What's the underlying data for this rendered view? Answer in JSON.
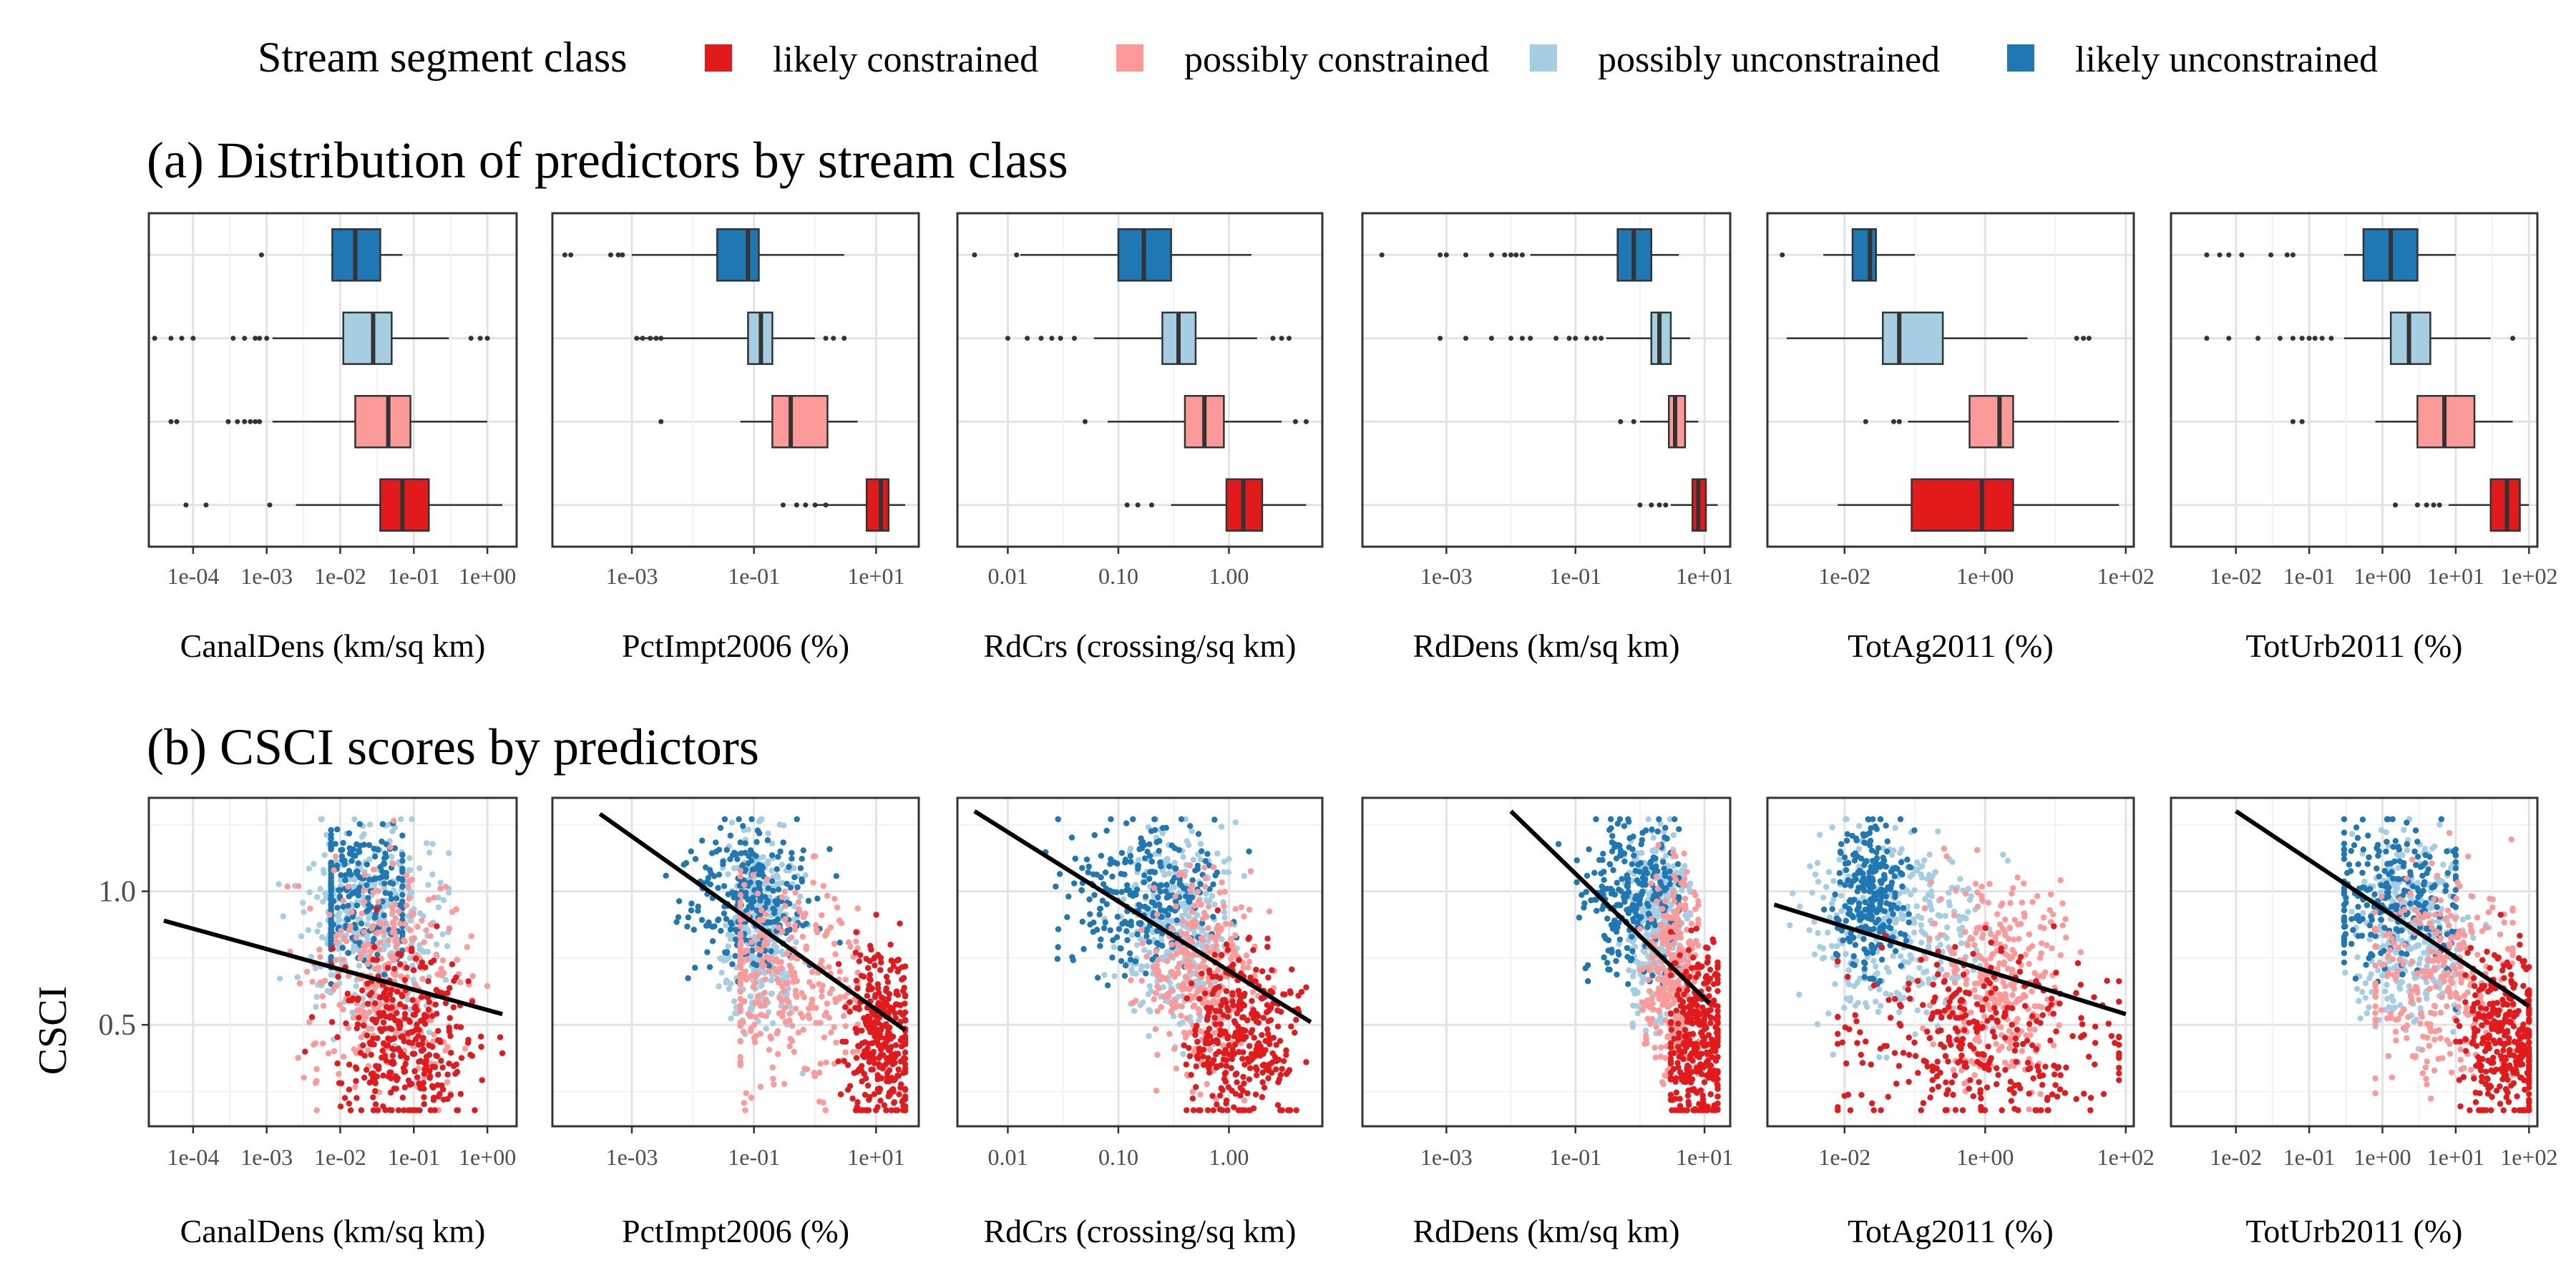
{
  "legend": {
    "title": "Stream segment class",
    "items": [
      {
        "label": "likely constrained",
        "color": "#e31a1c"
      },
      {
        "label": "possibly constrained",
        "color": "#fb9a99"
      },
      {
        "label": "possibly unconstrained",
        "color": "#a6cee3"
      },
      {
        "label": "likely unconstrained",
        "color": "#1f78b4"
      }
    ]
  },
  "panels": {
    "a_title": "(a) Distribution of predictors by stream class",
    "b_title": "(b) CSCI scores by predictors",
    "b_ylabel": "CSCI"
  },
  "chart_data": [
    {
      "type": "box",
      "title": "(a) Distribution of predictors by stream class",
      "log_x": true,
      "classes": [
        "likely unconstrained",
        "possibly unconstrained",
        "possibly constrained",
        "likely constrained"
      ],
      "facets": [
        {
          "xlabel": "CanalDens (km/sq km)",
          "xlim": [
            2.5e-05,
            2.5
          ],
          "ticks": [
            {
              "v": 0.0001,
              "label": "1e-04"
            },
            {
              "v": 0.001,
              "label": "1e-03"
            },
            {
              "v": 0.01,
              "label": "1e-02"
            },
            {
              "v": 0.1,
              "label": "1e-01"
            },
            {
              "v": 1,
              "label": "1e+00"
            }
          ],
          "boxes": [
            {
              "class": "likely unconstrained",
              "whisker_lo": 0.0075,
              "q1": 0.0078,
              "median": 0.016,
              "q3": 0.035,
              "whisker_hi": 0.07,
              "outliers": [
                0.00085
              ]
            },
            {
              "class": "possibly unconstrained",
              "whisker_lo": 0.0012,
              "q1": 0.011,
              "median": 0.028,
              "q3": 0.05,
              "whisker_hi": 0.3,
              "outliers": [
                3e-05,
                5e-05,
                7e-05,
                0.0001,
                0.00035,
                0.0005,
                0.0007,
                0.0008,
                0.001,
                0.6,
                0.8,
                1.0
              ]
            },
            {
              "class": "possibly constrained",
              "whisker_lo": 0.0012,
              "q1": 0.016,
              "median": 0.045,
              "q3": 0.09,
              "whisker_hi": 1.0,
              "outliers": [
                5e-05,
                6e-05,
                0.0003,
                0.0004,
                0.0005,
                0.0006,
                0.0007,
                0.0008
              ]
            },
            {
              "class": "likely constrained",
              "whisker_lo": 0.0025,
              "q1": 0.035,
              "median": 0.07,
              "q3": 0.16,
              "whisker_hi": 1.6,
              "outliers": [
                8e-05,
                0.00015,
                0.0011
              ]
            }
          ]
        },
        {
          "xlabel": "PctImpt2006 (%)",
          "xlim": [
            5e-05,
            50
          ],
          "ticks": [
            {
              "v": 0.001,
              "label": "1e-03"
            },
            {
              "v": 0.1,
              "label": "1e-01"
            },
            {
              "v": 10,
              "label": "1e+01"
            }
          ],
          "boxes": [
            {
              "class": "likely unconstrained",
              "whisker_lo": 0.001,
              "q1": 0.025,
              "median": 0.08,
              "q3": 0.12,
              "whisker_hi": 3.0,
              "outliers": [
                8e-05,
                0.0001,
                0.00045,
                0.0006,
                0.0007
              ]
            },
            {
              "class": "possibly unconstrained",
              "whisker_lo": 0.0012,
              "q1": 0.08,
              "median": 0.13,
              "q3": 0.2,
              "whisker_hi": 1.0,
              "outliers": [
                0.0012,
                0.0015,
                0.002,
                0.0025,
                0.003,
                1.5,
                2.0,
                3.0
              ]
            },
            {
              "class": "possibly constrained",
              "whisker_lo": 0.06,
              "q1": 0.2,
              "median": 0.4,
              "q3": 1.6,
              "whisker_hi": 5.0,
              "outliers": [
                0.003
              ]
            },
            {
              "class": "likely constrained",
              "whisker_lo": 1.0,
              "q1": 7.0,
              "median": 12,
              "q3": 16,
              "whisker_hi": 30,
              "outliers": [
                0.3,
                0.5,
                0.7,
                1.0,
                1.5
              ]
            }
          ]
        },
        {
          "xlabel": "RdCrs (crossing/sq km)",
          "xlim": [
            0.0035,
            7
          ],
          "ticks": [
            {
              "v": 0.01,
              "label": "0.01"
            },
            {
              "v": 0.1,
              "label": "0.10"
            },
            {
              "v": 1,
              "label": "1.00"
            }
          ],
          "boxes": [
            {
              "class": "likely unconstrained",
              "whisker_lo": 0.013,
              "q1": 0.1,
              "median": 0.17,
              "q3": 0.3,
              "whisker_hi": 1.6,
              "outliers": [
                0.005,
                0.012
              ]
            },
            {
              "class": "possibly unconstrained",
              "whisker_lo": 0.06,
              "q1": 0.25,
              "median": 0.35,
              "q3": 0.5,
              "whisker_hi": 1.8,
              "outliers": [
                0.01,
                0.015,
                0.02,
                0.025,
                0.03,
                0.04,
                2.5,
                3.0,
                3.5
              ]
            },
            {
              "class": "possibly constrained",
              "whisker_lo": 0.08,
              "q1": 0.4,
              "median": 0.6,
              "q3": 0.9,
              "whisker_hi": 3.0,
              "outliers": [
                0.05,
                4.0,
                5.0
              ]
            },
            {
              "class": "likely constrained",
              "whisker_lo": 0.3,
              "q1": 0.95,
              "median": 1.35,
              "q3": 2.0,
              "whisker_hi": 5.0,
              "outliers": [
                0.12,
                0.15,
                0.2
              ]
            }
          ]
        },
        {
          "xlabel": "RdDens (km/sq km)",
          "xlim": [
            5e-05,
            25
          ],
          "ticks": [
            {
              "v": 0.001,
              "label": "1e-03"
            },
            {
              "v": 0.1,
              "label": "1e-01"
            },
            {
              "v": 10,
              "label": "1e+01"
            }
          ],
          "boxes": [
            {
              "class": "likely unconstrained",
              "whisker_lo": 0.02,
              "q1": 0.45,
              "median": 0.8,
              "q3": 1.5,
              "whisker_hi": 4.0,
              "outliers": [
                0.0001,
                0.0008,
                0.001,
                0.002,
                0.005,
                0.008,
                0.01,
                0.012,
                0.015
              ]
            },
            {
              "class": "possibly unconstrained",
              "whisker_lo": 0.3,
              "q1": 1.5,
              "median": 2.0,
              "q3": 3.0,
              "whisker_hi": 6.0,
              "outliers": [
                0.0008,
                0.002,
                0.005,
                0.01,
                0.015,
                0.02,
                0.05,
                0.08,
                0.1,
                0.15,
                0.2,
                0.25
              ]
            },
            {
              "class": "possibly constrained",
              "whisker_lo": 1.0,
              "q1": 2.8,
              "median": 3.5,
              "q3": 5.0,
              "whisker_hi": 8.0,
              "outliers": [
                0.5,
                0.8
              ]
            },
            {
              "class": "likely constrained",
              "whisker_lo": 3.0,
              "q1": 6.5,
              "median": 8.0,
              "q3": 10.5,
              "whisker_hi": 16,
              "outliers": [
                1.0,
                1.5,
                2.0,
                2.5
              ]
            }
          ]
        },
        {
          "xlabel": "TotAg2011 (%)",
          "xlim": [
            0.0008,
            130
          ],
          "ticks": [
            {
              "v": 0.01,
              "label": "1e-02"
            },
            {
              "v": 1,
              "label": "1e+00"
            },
            {
              "v": 100,
              "label": "1e+02"
            }
          ],
          "boxes": [
            {
              "class": "likely unconstrained",
              "whisker_lo": 0.005,
              "q1": 0.013,
              "median": 0.023,
              "q3": 0.028,
              "whisker_hi": 0.1,
              "outliers": [
                0.0013
              ]
            },
            {
              "class": "possibly unconstrained",
              "whisker_lo": 0.0015,
              "q1": 0.035,
              "median": 0.06,
              "q3": 0.25,
              "whisker_hi": 4.0,
              "outliers": [
                20,
                25,
                30
              ]
            },
            {
              "class": "possibly constrained",
              "whisker_lo": 0.08,
              "q1": 0.6,
              "median": 1.6,
              "q3": 2.5,
              "whisker_hi": 80,
              "outliers": [
                0.02,
                0.05,
                0.06
              ]
            },
            {
              "class": "likely constrained",
              "whisker_lo": 0.008,
              "q1": 0.09,
              "median": 0.9,
              "q3": 2.5,
              "whisker_hi": 80,
              "outliers": []
            }
          ]
        },
        {
          "xlabel": "TotUrb2011 (%)",
          "xlim": [
            0.0013,
            130
          ],
          "ticks": [
            {
              "v": 0.01,
              "label": "1e-02"
            },
            {
              "v": 0.1,
              "label": "1e-01"
            },
            {
              "v": 1,
              "label": "1e+00"
            },
            {
              "v": 10,
              "label": "1e+01"
            },
            {
              "v": 100,
              "label": "1e+02"
            }
          ],
          "boxes": [
            {
              "class": "likely unconstrained",
              "whisker_lo": 0.3,
              "q1": 0.55,
              "median": 1.3,
              "q3": 3.0,
              "whisker_hi": 10,
              "outliers": [
                0.004,
                0.006,
                0.008,
                0.012,
                0.03,
                0.05,
                0.06
              ]
            },
            {
              "class": "possibly unconstrained",
              "whisker_lo": 0.3,
              "q1": 1.3,
              "median": 2.3,
              "q3": 4.5,
              "whisker_hi": 30,
              "outliers": [
                0.004,
                0.008,
                0.02,
                0.04,
                0.06,
                0.08,
                0.1,
                0.12,
                0.15,
                0.2,
                60
              ]
            },
            {
              "class": "possibly constrained",
              "whisker_lo": 0.8,
              "q1": 3.0,
              "median": 7.0,
              "q3": 18,
              "whisker_hi": 60,
              "outliers": [
                0.06,
                0.08
              ]
            },
            {
              "class": "likely constrained",
              "whisker_lo": 8,
              "q1": 30,
              "median": 50,
              "q3": 75,
              "whisker_hi": 100,
              "outliers": [
                1.5,
                3,
                4,
                5,
                6
              ]
            }
          ]
        }
      ]
    },
    {
      "type": "scatter",
      "title": "(b) CSCI scores by predictors",
      "ylabel": "CSCI",
      "ylim": [
        0.12,
        1.35
      ],
      "yticks": [
        0.5,
        1.0
      ],
      "log_x": true,
      "facets": [
        {
          "xlabel": "CanalDens (km/sq km)",
          "xlim": [
            2.5e-05,
            2.5
          ],
          "fit_line": [
            [
              4e-05,
              0.89
            ],
            [
              1.6,
              0.54
            ]
          ]
        },
        {
          "xlabel": "PctImpt2006 (%)",
          "xlim": [
            5e-05,
            50
          ],
          "fit_line": [
            [
              0.0003,
              1.29
            ],
            [
              30,
              0.48
            ]
          ]
        },
        {
          "xlabel": "RdCrs (crossing/sq km)",
          "xlim": [
            0.0035,
            7
          ],
          "fit_line": [
            [
              0.005,
              1.3
            ],
            [
              5.5,
              0.51
            ]
          ]
        },
        {
          "xlabel": "RdDens (km/sq km)",
          "xlim": [
            5e-05,
            25
          ],
          "fit_line": [
            [
              0.01,
              1.3
            ],
            [
              12,
              0.58
            ]
          ]
        },
        {
          "xlabel": "TotAg2011 (%)",
          "xlim": [
            0.0008,
            130
          ],
          "fit_line": [
            [
              0.001,
              0.95
            ],
            [
              100,
              0.54
            ]
          ]
        },
        {
          "xlabel": "TotUrb2011 (%)",
          "xlim": [
            0.0013,
            130
          ],
          "fit_line": [
            [
              0.01,
              1.3
            ],
            [
              100,
              0.57
            ]
          ]
        }
      ]
    }
  ]
}
